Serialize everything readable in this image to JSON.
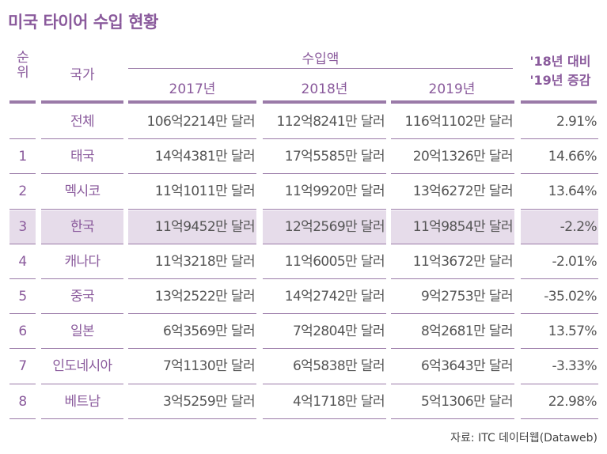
{
  "title": "미국 타이어 수입 현황",
  "header": {
    "rank": "순위",
    "country": "국가",
    "import_amount": "수입액",
    "years": [
      "2017년",
      "2018년",
      "2019년"
    ],
    "change_line1": "'18년 대비",
    "change_line2": "'19년 증감"
  },
  "rows": [
    {
      "rank": "",
      "country": "전체",
      "y2017": "106억2214만 달러",
      "y2018": "112억8241만 달러",
      "y2019": "116억1102만 달러",
      "change": "2.91%"
    },
    {
      "rank": "1",
      "country": "태국",
      "y2017": "14억4381만 달러",
      "y2018": "17억5585만 달러",
      "y2019": "20억1326만 달러",
      "change": "14.66%"
    },
    {
      "rank": "2",
      "country": "멕시코",
      "y2017": "11억1011만 달러",
      "y2018": "11억9920만 달러",
      "y2019": "13억6272만 달러",
      "change": "13.64%"
    },
    {
      "rank": "3",
      "country": "한국",
      "y2017": "11억9452만 달러",
      "y2018": "12억2569만 달러",
      "y2019": "11억9854만 달러",
      "change": "-2.2%"
    },
    {
      "rank": "4",
      "country": "캐나다",
      "y2017": "11억3218만 달러",
      "y2018": "11억6005만 달러",
      "y2019": "11억3672만 달러",
      "change": "-2.01%"
    },
    {
      "rank": "5",
      "country": "중국",
      "y2017": "13억2522만 달러",
      "y2018": "14억2742만 달러",
      "y2019": "9억2753만 달러",
      "change": "-35.02%"
    },
    {
      "rank": "6",
      "country": "일본",
      "y2017": "6억3569만 달러",
      "y2018": "7억2804만 달러",
      "y2019": "8억2681만 달러",
      "change": "13.57%"
    },
    {
      "rank": "7",
      "country": "인도네시아",
      "y2017": "7억1130만 달러",
      "y2018": "6억5838만 달러",
      "y2019": "6억3643만 달러",
      "change": "-3.33%"
    },
    {
      "rank": "8",
      "country": "베트남",
      "y2017": "3억5259만 달러",
      "y2018": "4억1718만 달러",
      "y2019": "5억1306만 달러",
      "change": "22.98%"
    }
  ],
  "highlight_country": "한국",
  "source": "자료: ITC 데이터웹(Dataweb)",
  "colors": {
    "accent": "#8a5a9c",
    "highlight": "#e6dcea"
  }
}
